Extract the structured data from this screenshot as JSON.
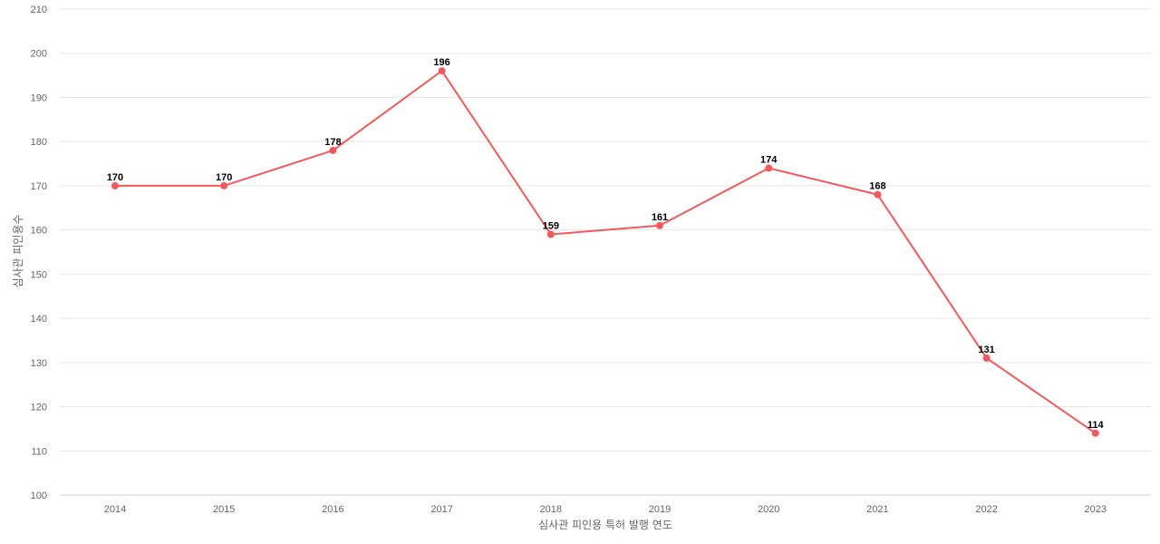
{
  "chart_data": {
    "type": "line",
    "title": "",
    "xlabel": "심사관 피인용 특허 발행 연도",
    "ylabel": "심사관 피인용수",
    "categories": [
      "2014",
      "2015",
      "2016",
      "2017",
      "2018",
      "2019",
      "2020",
      "2021",
      "2022",
      "2023"
    ],
    "series": [
      {
        "values": [
          170,
          170,
          178,
          196,
          159,
          161,
          174,
          168,
          131,
          114
        ],
        "color": "#f05a5a"
      }
    ],
    "ylim": [
      100,
      210
    ],
    "yticks": [
      100,
      110,
      120,
      130,
      140,
      150,
      160,
      170,
      180,
      190,
      200,
      210
    ],
    "grid": true,
    "data_labels": true
  }
}
